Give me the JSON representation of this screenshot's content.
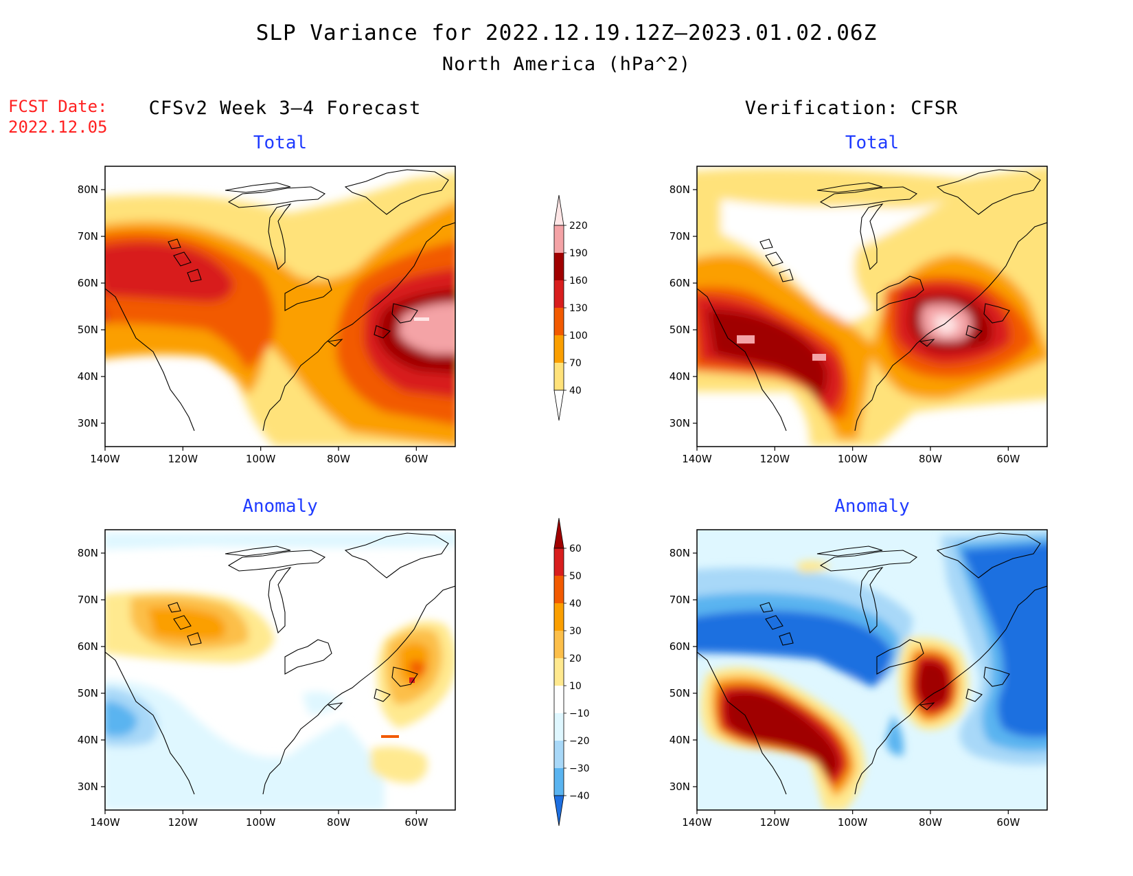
{
  "title": "SLP Variance for 2022.12.19.12Z—2023.01.02.06Z",
  "subtitle": "North America (hPa^2)",
  "fcst_label": "FCST Date:",
  "fcst_date": "2022.12.05",
  "left_header": "CFSv2 Week 3—4 Forecast",
  "right_header": "Verification: CFSR",
  "panel_titles": {
    "total": "Total",
    "anomaly": "Anomaly"
  },
  "axes": {
    "lat_ticks": [
      "80N",
      "70N",
      "60N",
      "50N",
      "40N",
      "30N"
    ],
    "lon_ticks": [
      "140W",
      "120W",
      "100W",
      "80W",
      "60W"
    ]
  },
  "colorbar_total": {
    "levels": [
      "220",
      "190",
      "160",
      "130",
      "100",
      "70",
      "40"
    ],
    "colors": [
      "#ffe6e6",
      "#f4a3a6",
      "#a00000",
      "#d81e1e",
      "#f25a00",
      "#fb9f00",
      "#ffe27a"
    ]
  },
  "colorbar_anomaly": {
    "levels": [
      "60",
      "50",
      "40",
      "30",
      "20",
      "10",
      "−10",
      "−20",
      "−30",
      "−40"
    ],
    "colors": [
      "#a00000",
      "#d81e1e",
      "#f25a00",
      "#fb9f00",
      "#fcbf4a",
      "#ffe98f",
      "#ffffff",
      "#dff7ff",
      "#a8d8f8",
      "#5ab4f0",
      "#1e6fe0"
    ]
  },
  "chart_data": {
    "type": "heatmap",
    "variable": "SLP Variance",
    "units": "hPa^2",
    "domain": {
      "lon": [
        -140,
        -50
      ],
      "lat": [
        25,
        85
      ]
    },
    "panels": [
      {
        "name": "CFSv2 Week 3—4 Forecast Total",
        "max_region": "Labrador / Gulf of St. Lawrence (>190)",
        "secondary_max": "Gulf of Alaska / Western Canada (130–160)"
      },
      {
        "name": "CFSR Total",
        "max_region": "Eastern Canada / Quebec (>220)",
        "secondary_max": "Pacific Northwest to Rockies (160–190)"
      },
      {
        "name": "CFSv2 Anomaly",
        "max_region": "Labrador (40–50)",
        "min_region": "Pacific NW coast (−30 to −40)"
      },
      {
        "name": "CFSR Anomaly",
        "max_region": "Western US and Great Lakes/Ontario (>60)",
        "min_region": "Northern Canada and Atlantic (<−40)"
      }
    ]
  }
}
